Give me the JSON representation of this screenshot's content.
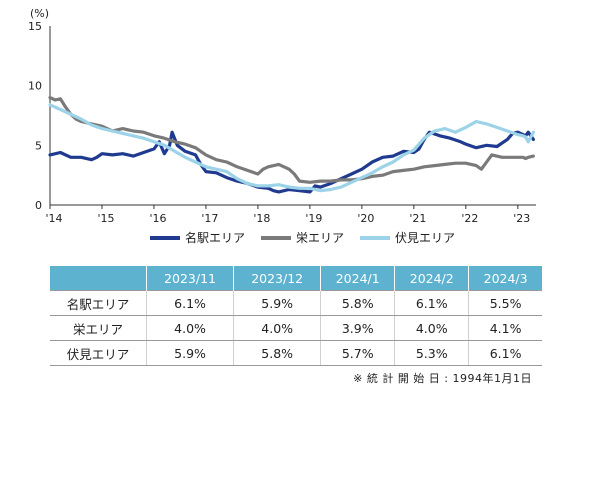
{
  "chart_data": {
    "type": "line",
    "unit_label": "(%)",
    "ylim": [
      0,
      15
    ],
    "yticks": [
      "0",
      "5",
      "10",
      "15"
    ],
    "xlim": [
      2014,
      2023.35
    ],
    "xticks": [
      {
        "x": 2014,
        "label": "'14"
      },
      {
        "x": 2015,
        "label": "'15"
      },
      {
        "x": 2016,
        "label": "'16"
      },
      {
        "x": 2017,
        "label": "'17"
      },
      {
        "x": 2018,
        "label": "'18"
      },
      {
        "x": 2019,
        "label": "'19"
      },
      {
        "x": 2020,
        "label": "'20"
      },
      {
        "x": 2021,
        "label": "'21"
      },
      {
        "x": 2022,
        "label": "'22"
      },
      {
        "x": 2023,
        "label": "'23"
      }
    ],
    "grid": false,
    "series": [
      {
        "name": "名駅エリア",
        "color": "#1f3a8f",
        "points": [
          [
            2014.0,
            4.2
          ],
          [
            2014.2,
            4.4
          ],
          [
            2014.4,
            4.0
          ],
          [
            2014.6,
            4.0
          ],
          [
            2014.8,
            3.8
          ],
          [
            2014.9,
            4.0
          ],
          [
            2015.0,
            4.3
          ],
          [
            2015.2,
            4.2
          ],
          [
            2015.4,
            4.3
          ],
          [
            2015.6,
            4.1
          ],
          [
            2015.8,
            4.4
          ],
          [
            2016.0,
            4.7
          ],
          [
            2016.1,
            5.3
          ],
          [
            2016.2,
            4.3
          ],
          [
            2016.3,
            5.0
          ],
          [
            2016.35,
            6.1
          ],
          [
            2016.45,
            5.0
          ],
          [
            2016.6,
            4.5
          ],
          [
            2016.8,
            4.2
          ],
          [
            2016.9,
            3.4
          ],
          [
            2017.0,
            2.8
          ],
          [
            2017.2,
            2.7
          ],
          [
            2017.4,
            2.3
          ],
          [
            2017.6,
            2.0
          ],
          [
            2017.8,
            1.8
          ],
          [
            2018.0,
            1.5
          ],
          [
            2018.2,
            1.4
          ],
          [
            2018.3,
            1.2
          ],
          [
            2018.4,
            1.1
          ],
          [
            2018.6,
            1.3
          ],
          [
            2018.8,
            1.2
          ],
          [
            2019.0,
            1.1
          ],
          [
            2019.1,
            1.6
          ],
          [
            2019.2,
            1.5
          ],
          [
            2019.4,
            1.8
          ],
          [
            2019.6,
            2.2
          ],
          [
            2019.8,
            2.6
          ],
          [
            2020.0,
            3.0
          ],
          [
            2020.2,
            3.6
          ],
          [
            2020.4,
            4.0
          ],
          [
            2020.6,
            4.1
          ],
          [
            2020.8,
            4.5
          ],
          [
            2021.0,
            4.4
          ],
          [
            2021.1,
            4.7
          ],
          [
            2021.2,
            5.5
          ],
          [
            2021.3,
            6.1
          ],
          [
            2021.5,
            5.8
          ],
          [
            2021.7,
            5.6
          ],
          [
            2021.9,
            5.3
          ],
          [
            2022.0,
            5.1
          ],
          [
            2022.2,
            4.8
          ],
          [
            2022.4,
            5.0
          ],
          [
            2022.6,
            4.9
          ],
          [
            2022.7,
            5.2
          ],
          [
            2022.8,
            5.5
          ],
          [
            2022.9,
            6.0
          ],
          [
            2023.0,
            6.1
          ],
          [
            2023.1,
            5.9
          ],
          [
            2023.15,
            5.8
          ],
          [
            2023.2,
            6.1
          ],
          [
            2023.3,
            5.5
          ]
        ]
      },
      {
        "name": "栄エリア",
        "color": "#7a7a7a",
        "points": [
          [
            2014.0,
            9.0
          ],
          [
            2014.1,
            8.8
          ],
          [
            2014.2,
            8.9
          ],
          [
            2014.3,
            8.2
          ],
          [
            2014.4,
            7.6
          ],
          [
            2014.5,
            7.2
          ],
          [
            2014.6,
            7.0
          ],
          [
            2014.8,
            6.8
          ],
          [
            2015.0,
            6.6
          ],
          [
            2015.2,
            6.2
          ],
          [
            2015.4,
            6.4
          ],
          [
            2015.6,
            6.2
          ],
          [
            2015.8,
            6.1
          ],
          [
            2016.0,
            5.8
          ],
          [
            2016.2,
            5.6
          ],
          [
            2016.4,
            5.3
          ],
          [
            2016.6,
            5.1
          ],
          [
            2016.8,
            4.8
          ],
          [
            2017.0,
            4.2
          ],
          [
            2017.2,
            3.8
          ],
          [
            2017.4,
            3.6
          ],
          [
            2017.6,
            3.2
          ],
          [
            2017.8,
            2.9
          ],
          [
            2018.0,
            2.6
          ],
          [
            2018.1,
            3.0
          ],
          [
            2018.2,
            3.2
          ],
          [
            2018.4,
            3.4
          ],
          [
            2018.6,
            3.0
          ],
          [
            2018.7,
            2.6
          ],
          [
            2018.8,
            2.0
          ],
          [
            2019.0,
            1.9
          ],
          [
            2019.2,
            2.0
          ],
          [
            2019.4,
            2.0
          ],
          [
            2019.6,
            2.1
          ],
          [
            2019.8,
            2.1
          ],
          [
            2020.0,
            2.2
          ],
          [
            2020.2,
            2.4
          ],
          [
            2020.4,
            2.5
          ],
          [
            2020.6,
            2.8
          ],
          [
            2020.8,
            2.9
          ],
          [
            2021.0,
            3.0
          ],
          [
            2021.2,
            3.2
          ],
          [
            2021.4,
            3.3
          ],
          [
            2021.6,
            3.4
          ],
          [
            2021.8,
            3.5
          ],
          [
            2022.0,
            3.5
          ],
          [
            2022.2,
            3.3
          ],
          [
            2022.3,
            3.0
          ],
          [
            2022.4,
            3.6
          ],
          [
            2022.5,
            4.2
          ],
          [
            2022.7,
            4.0
          ],
          [
            2022.9,
            4.0
          ],
          [
            2023.0,
            4.0
          ],
          [
            2023.1,
            4.0
          ],
          [
            2023.15,
            3.9
          ],
          [
            2023.2,
            4.0
          ],
          [
            2023.3,
            4.1
          ]
        ]
      },
      {
        "name": "伏見エリア",
        "color": "#9dd3e8",
        "points": [
          [
            2014.0,
            8.4
          ],
          [
            2014.2,
            8.0
          ],
          [
            2014.4,
            7.6
          ],
          [
            2014.6,
            7.2
          ],
          [
            2014.8,
            6.7
          ],
          [
            2015.0,
            6.4
          ],
          [
            2015.2,
            6.2
          ],
          [
            2015.4,
            6.0
          ],
          [
            2015.6,
            5.8
          ],
          [
            2015.8,
            5.6
          ],
          [
            2016.0,
            5.3
          ],
          [
            2016.2,
            5.0
          ],
          [
            2016.4,
            4.5
          ],
          [
            2016.6,
            4.0
          ],
          [
            2016.8,
            3.6
          ],
          [
            2017.0,
            3.2
          ],
          [
            2017.2,
            3.0
          ],
          [
            2017.4,
            2.8
          ],
          [
            2017.6,
            2.2
          ],
          [
            2017.8,
            1.8
          ],
          [
            2018.0,
            1.6
          ],
          [
            2018.2,
            1.6
          ],
          [
            2018.4,
            1.7
          ],
          [
            2018.6,
            1.5
          ],
          [
            2018.8,
            1.4
          ],
          [
            2019.0,
            1.4
          ],
          [
            2019.2,
            1.2
          ],
          [
            2019.4,
            1.3
          ],
          [
            2019.6,
            1.5
          ],
          [
            2019.8,
            1.9
          ],
          [
            2020.0,
            2.3
          ],
          [
            2020.2,
            2.7
          ],
          [
            2020.4,
            3.2
          ],
          [
            2020.6,
            3.6
          ],
          [
            2020.8,
            4.2
          ],
          [
            2021.0,
            4.6
          ],
          [
            2021.2,
            5.6
          ],
          [
            2021.4,
            6.2
          ],
          [
            2021.6,
            6.4
          ],
          [
            2021.8,
            6.1
          ],
          [
            2022.0,
            6.5
          ],
          [
            2022.2,
            7.0
          ],
          [
            2022.4,
            6.8
          ],
          [
            2022.6,
            6.5
          ],
          [
            2022.8,
            6.2
          ],
          [
            2023.0,
            5.9
          ],
          [
            2023.1,
            5.8
          ],
          [
            2023.15,
            5.7
          ],
          [
            2023.2,
            5.3
          ],
          [
            2023.3,
            6.1
          ]
        ]
      }
    ]
  },
  "legend": [
    "名駅エリア",
    "栄エリア",
    "伏見エリア"
  ],
  "table": {
    "headers": [
      "",
      "2023/11",
      "2023/12",
      "2024/1",
      "2024/2",
      "2024/3"
    ],
    "rows": [
      {
        "label": "名駅エリア",
        "values": [
          "6.1%",
          "5.9%",
          "5.8%",
          "6.1%",
          "5.5%"
        ]
      },
      {
        "label": "栄エリア",
        "values": [
          "4.0%",
          "4.0%",
          "3.9%",
          "4.0%",
          "4.1%"
        ]
      },
      {
        "label": "伏見エリア",
        "values": [
          "5.9%",
          "5.8%",
          "5.7%",
          "5.3%",
          "6.1%"
        ]
      }
    ]
  },
  "note": "※ 統 計 開 始 日 : 1994年1月1日"
}
